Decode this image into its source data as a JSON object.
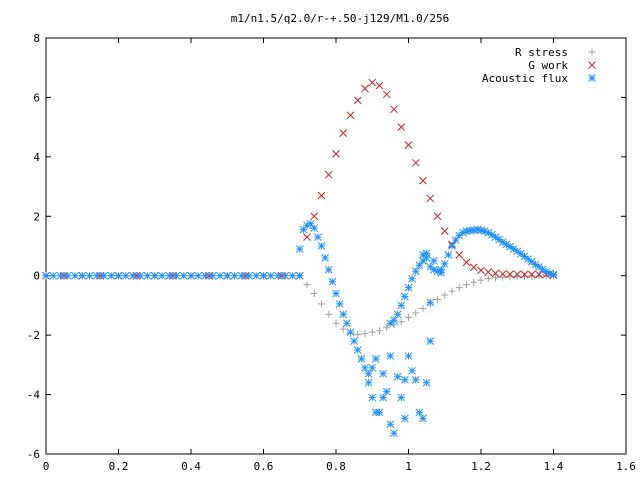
{
  "chart_data": {
    "type": "scatter",
    "title": "m1/n1.5/q2.0/r-+.50-j129/M1.0/256",
    "xlabel": "",
    "ylabel": "",
    "xlim": [
      0,
      1.6
    ],
    "ylim": [
      -6,
      8
    ],
    "x_ticks": [
      "0",
      "0.2",
      "0.4",
      "0.6",
      "0.8",
      "1",
      "1.2",
      "1.4",
      "1.6"
    ],
    "y_ticks": [
      "-6",
      "-4",
      "-2",
      "0",
      "2",
      "4",
      "6",
      "8"
    ],
    "grid": false,
    "legend_position": "top-right",
    "series": [
      {
        "name": "R stress",
        "marker": "plus",
        "color": "#a0a0a0",
        "points": [
          [
            0.0,
            0.0
          ],
          [
            0.05,
            0.0
          ],
          [
            0.1,
            0.0
          ],
          [
            0.15,
            0.0
          ],
          [
            0.2,
            0.0
          ],
          [
            0.25,
            0.0
          ],
          [
            0.3,
            0.0
          ],
          [
            0.35,
            0.0
          ],
          [
            0.4,
            0.0
          ],
          [
            0.45,
            0.0
          ],
          [
            0.5,
            0.0
          ],
          [
            0.55,
            0.0
          ],
          [
            0.6,
            0.0
          ],
          [
            0.65,
            0.0
          ],
          [
            0.7,
            0.0
          ],
          [
            0.72,
            -0.3
          ],
          [
            0.74,
            -0.6
          ],
          [
            0.76,
            -0.95
          ],
          [
            0.78,
            -1.3
          ],
          [
            0.8,
            -1.6
          ],
          [
            0.82,
            -1.8
          ],
          [
            0.84,
            -1.95
          ],
          [
            0.86,
            -1.98
          ],
          [
            0.88,
            -1.95
          ],
          [
            0.9,
            -1.9
          ],
          [
            0.92,
            -1.85
          ],
          [
            0.94,
            -1.75
          ],
          [
            0.96,
            -1.65
          ],
          [
            0.98,
            -1.55
          ],
          [
            1.0,
            -1.4
          ],
          [
            1.02,
            -1.25
          ],
          [
            1.04,
            -1.1
          ],
          [
            1.06,
            -0.95
          ],
          [
            1.08,
            -0.8
          ],
          [
            1.1,
            -0.65
          ],
          [
            1.12,
            -0.52
          ],
          [
            1.14,
            -0.4
          ],
          [
            1.16,
            -0.3
          ],
          [
            1.18,
            -0.22
          ],
          [
            1.2,
            -0.15
          ],
          [
            1.22,
            -0.1
          ],
          [
            1.24,
            -0.07
          ],
          [
            1.26,
            -0.05
          ],
          [
            1.28,
            -0.04
          ],
          [
            1.3,
            -0.03
          ],
          [
            1.32,
            -0.02
          ],
          [
            1.34,
            -0.01
          ],
          [
            1.36,
            -0.01
          ],
          [
            1.38,
            0.0
          ],
          [
            1.4,
            0.0
          ]
        ]
      },
      {
        "name": "G work",
        "marker": "cross",
        "color": "#cc2020",
        "points": [
          [
            0.0,
            0.0
          ],
          [
            0.05,
            0.0
          ],
          [
            0.1,
            0.0
          ],
          [
            0.15,
            0.0
          ],
          [
            0.2,
            0.0
          ],
          [
            0.25,
            0.0
          ],
          [
            0.3,
            0.0
          ],
          [
            0.35,
            0.0
          ],
          [
            0.4,
            0.0
          ],
          [
            0.45,
            0.0
          ],
          [
            0.5,
            0.0
          ],
          [
            0.55,
            0.0
          ],
          [
            0.6,
            0.0
          ],
          [
            0.65,
            0.0
          ],
          [
            0.7,
            0.0
          ],
          [
            0.72,
            1.3
          ],
          [
            0.74,
            2.0
          ],
          [
            0.76,
            2.7
          ],
          [
            0.78,
            3.4
          ],
          [
            0.8,
            4.1
          ],
          [
            0.82,
            4.8
          ],
          [
            0.84,
            5.4
          ],
          [
            0.86,
            5.9
          ],
          [
            0.88,
            6.3
          ],
          [
            0.9,
            6.5
          ],
          [
            0.92,
            6.4
          ],
          [
            0.94,
            6.1
          ],
          [
            0.96,
            5.6
          ],
          [
            0.98,
            5.0
          ],
          [
            1.0,
            4.4
          ],
          [
            1.02,
            3.8
          ],
          [
            1.04,
            3.2
          ],
          [
            1.06,
            2.6
          ],
          [
            1.08,
            2.0
          ],
          [
            1.1,
            1.5
          ],
          [
            1.12,
            1.05
          ],
          [
            1.14,
            0.7
          ],
          [
            1.16,
            0.45
          ],
          [
            1.18,
            0.28
          ],
          [
            1.2,
            0.18
          ],
          [
            1.22,
            0.12
          ],
          [
            1.24,
            0.08
          ],
          [
            1.26,
            0.06
          ],
          [
            1.28,
            0.05
          ],
          [
            1.3,
            0.05
          ],
          [
            1.32,
            0.04
          ],
          [
            1.34,
            0.04
          ],
          [
            1.36,
            0.04
          ],
          [
            1.38,
            0.03
          ],
          [
            1.4,
            0.02
          ]
        ]
      },
      {
        "name": "Acoustic flux",
        "marker": "star",
        "color": "#1e90ff",
        "points": [
          [
            0.0,
            0.0
          ],
          [
            0.02,
            0.0
          ],
          [
            0.04,
            0.0
          ],
          [
            0.06,
            0.0
          ],
          [
            0.08,
            0.0
          ],
          [
            0.1,
            0.0
          ],
          [
            0.12,
            0.0
          ],
          [
            0.14,
            0.0
          ],
          [
            0.16,
            0.0
          ],
          [
            0.18,
            0.0
          ],
          [
            0.2,
            0.0
          ],
          [
            0.22,
            0.0
          ],
          [
            0.24,
            0.0
          ],
          [
            0.26,
            0.0
          ],
          [
            0.28,
            0.0
          ],
          [
            0.3,
            0.0
          ],
          [
            0.32,
            0.0
          ],
          [
            0.34,
            0.0
          ],
          [
            0.36,
            0.0
          ],
          [
            0.38,
            0.0
          ],
          [
            0.4,
            0.0
          ],
          [
            0.42,
            0.0
          ],
          [
            0.44,
            0.0
          ],
          [
            0.46,
            0.0
          ],
          [
            0.48,
            0.0
          ],
          [
            0.5,
            0.0
          ],
          [
            0.52,
            0.0
          ],
          [
            0.54,
            0.0
          ],
          [
            0.56,
            0.0
          ],
          [
            0.58,
            0.0
          ],
          [
            0.6,
            0.0
          ],
          [
            0.62,
            0.0
          ],
          [
            0.64,
            0.0
          ],
          [
            0.66,
            0.0
          ],
          [
            0.68,
            0.0
          ],
          [
            0.7,
            0.0
          ],
          [
            0.7,
            0.9
          ],
          [
            0.71,
            1.55
          ],
          [
            0.72,
            1.7
          ],
          [
            0.73,
            1.75
          ],
          [
            0.74,
            1.6
          ],
          [
            0.75,
            1.3
          ],
          [
            0.76,
            1.0
          ],
          [
            0.77,
            0.6
          ],
          [
            0.78,
            0.2
          ],
          [
            0.79,
            -0.2
          ],
          [
            0.8,
            -0.6
          ],
          [
            0.81,
            -0.95
          ],
          [
            0.82,
            -1.3
          ],
          [
            0.83,
            -1.6
          ],
          [
            0.84,
            -1.9
          ],
          [
            0.85,
            -2.2
          ],
          [
            0.86,
            -2.5
          ],
          [
            0.87,
            -2.8
          ],
          [
            0.88,
            -3.1
          ],
          [
            0.89,
            -3.3
          ],
          [
            0.95,
            -1.6
          ],
          [
            0.96,
            -1.5
          ],
          [
            0.97,
            -1.3
          ],
          [
            0.98,
            -1.0
          ],
          [
            0.99,
            -0.7
          ],
          [
            1.0,
            -0.4
          ],
          [
            1.01,
            -0.1
          ],
          [
            1.02,
            0.15
          ],
          [
            1.03,
            0.35
          ],
          [
            1.04,
            0.5
          ],
          [
            1.05,
            0.6
          ],
          [
            1.06,
            0.3
          ],
          [
            1.07,
            0.2
          ],
          [
            1.08,
            0.15
          ],
          [
            1.09,
            0.2
          ],
          [
            1.1,
            0.4
          ],
          [
            1.11,
            0.7
          ],
          [
            1.12,
            1.0
          ],
          [
            1.13,
            1.2
          ],
          [
            1.14,
            1.35
          ],
          [
            1.15,
            1.45
          ],
          [
            1.16,
            1.5
          ],
          [
            1.17,
            1.52
          ],
          [
            1.18,
            1.53
          ],
          [
            1.19,
            1.55
          ],
          [
            1.2,
            1.53
          ],
          [
            1.21,
            1.5
          ],
          [
            1.22,
            1.45
          ],
          [
            1.23,
            1.38
          ],
          [
            1.24,
            1.3
          ],
          [
            1.25,
            1.22
          ],
          [
            1.26,
            1.13
          ],
          [
            1.27,
            1.05
          ],
          [
            1.28,
            0.98
          ],
          [
            1.29,
            0.9
          ],
          [
            1.3,
            0.82
          ],
          [
            1.31,
            0.74
          ],
          [
            1.32,
            0.65
          ],
          [
            1.33,
            0.56
          ],
          [
            1.34,
            0.47
          ],
          [
            1.35,
            0.38
          ],
          [
            1.36,
            0.3
          ],
          [
            1.37,
            0.22
          ],
          [
            1.38,
            0.14
          ],
          [
            1.39,
            0.08
          ],
          [
            1.4,
            0.04
          ],
          [
            0.89,
            -3.6
          ],
          [
            0.9,
            -3.1
          ],
          [
            0.9,
            -4.1
          ],
          [
            0.91,
            -2.8
          ],
          [
            0.91,
            -4.6
          ],
          [
            0.92,
            -4.6
          ],
          [
            0.93,
            -3.3
          ],
          [
            0.93,
            -4.1
          ],
          [
            0.94,
            -3.9
          ],
          [
            0.95,
            -5.0
          ],
          [
            0.95,
            -2.7
          ],
          [
            0.96,
            -5.3
          ],
          [
            0.97,
            -3.4
          ],
          [
            0.98,
            -4.1
          ],
          [
            0.99,
            -3.5
          ],
          [
            0.99,
            -4.8
          ],
          [
            1.0,
            -2.7
          ],
          [
            1.01,
            -3.2
          ],
          [
            1.02,
            -3.5
          ],
          [
            1.03,
            -4.6
          ],
          [
            1.04,
            -4.8
          ],
          [
            1.05,
            -3.6
          ],
          [
            1.06,
            -2.2
          ],
          [
            1.06,
            -0.9
          ],
          [
            1.05,
            0.75
          ],
          [
            1.04,
            0.7
          ],
          [
            1.07,
            0.5
          ],
          [
            1.09,
            0.1
          ]
        ]
      }
    ]
  }
}
